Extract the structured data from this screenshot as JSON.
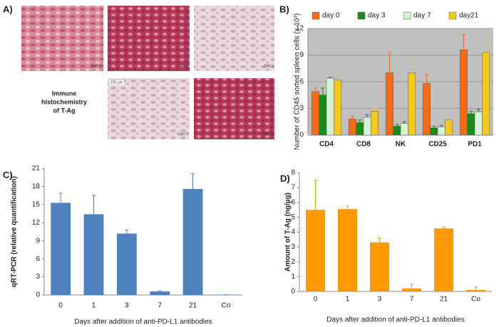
{
  "panel_a": {
    "label": "A)",
    "images": [
      {
        "label": "DAY 0"
      },
      {
        "label": "DAY 1"
      },
      {
        "label": "DAY 3"
      },
      {
        "label": "DAY 7"
      },
      {
        "label": "DAY 21"
      }
    ],
    "caption": [
      "Immune",
      "histochemistry",
      "of T-Ag"
    ],
    "scale_bar": "100 µm"
  },
  "chart_data": [
    {
      "type": "bar",
      "panel": "B)",
      "y_label": "Number of CD45 sorted spleen cells (x 10³)",
      "categories": [
        "CD4",
        "CD8",
        "NK",
        "CD25",
        "PD1"
      ],
      "series": [
        {
          "name": "day 0",
          "color": "#f26a1b",
          "values": [
            4.9,
            1.8,
            7.0,
            5.8,
            9.6
          ],
          "errors": [
            0.4,
            0.3,
            2.3,
            1.0,
            1.7
          ]
        },
        {
          "name": "day 3",
          "color": "#1c8a1c",
          "values": [
            4.5,
            1.4,
            1.0,
            0.8,
            2.4
          ],
          "errors": [
            0.8,
            0.3,
            0.2,
            0.2,
            0.3
          ]
        },
        {
          "name": "day 7",
          "color": "#d4f5d4",
          "values": [
            6.4,
            2.0,
            1.3,
            0.9,
            2.6
          ],
          "errors": [
            0.1,
            0.3,
            0.2,
            0.2,
            0.3
          ]
        },
        {
          "name": "day21",
          "color": "#f5c81c",
          "values": [
            6.2,
            2.7,
            7.0,
            1.7,
            9.3
          ],
          "errors": [
            1.0,
            0.3,
            1.4,
            0.4,
            1.2
          ]
        }
      ],
      "ylim": [
        0,
        12
      ],
      "yticks": [
        0,
        3,
        6,
        9,
        12
      ],
      "grid": true,
      "legend": "top"
    },
    {
      "type": "bar",
      "panel": "C)",
      "y_label": "qRT-PCR (relative quantification)",
      "x_label": "Days after addition of anti-PD-L1 antibodies",
      "categories": [
        "0",
        "1",
        "3",
        "7",
        "21",
        "Co"
      ],
      "values": [
        15.3,
        13.4,
        10.2,
        0.6,
        17.6,
        0.05
      ],
      "errors": [
        1.6,
        3.1,
        0.6,
        0.1,
        2.5,
        0
      ],
      "color": "#4f81bd",
      "ylim": [
        0,
        21
      ],
      "yticks": [
        0,
        3,
        6,
        9,
        12,
        15,
        18,
        21
      ],
      "grid": false
    },
    {
      "type": "bar",
      "panel": "D)",
      "y_label": "Amount of T-Ag (ng/µg)",
      "x_label": "Days after addition of anti-PD-L1 antibodies",
      "categories": [
        "0",
        "1",
        "3",
        "7",
        "21",
        "Co"
      ],
      "values": [
        5.5,
        5.55,
        3.3,
        0.2,
        4.25,
        0.1
      ],
      "errors": [
        2.0,
        0.2,
        0.3,
        0.3,
        0.1,
        0.2
      ],
      "color": "#ff9900",
      "ylim": [
        0,
        8
      ],
      "yticks": [
        0,
        1,
        2,
        3,
        4,
        5,
        6,
        7,
        8
      ],
      "grid": false
    }
  ]
}
